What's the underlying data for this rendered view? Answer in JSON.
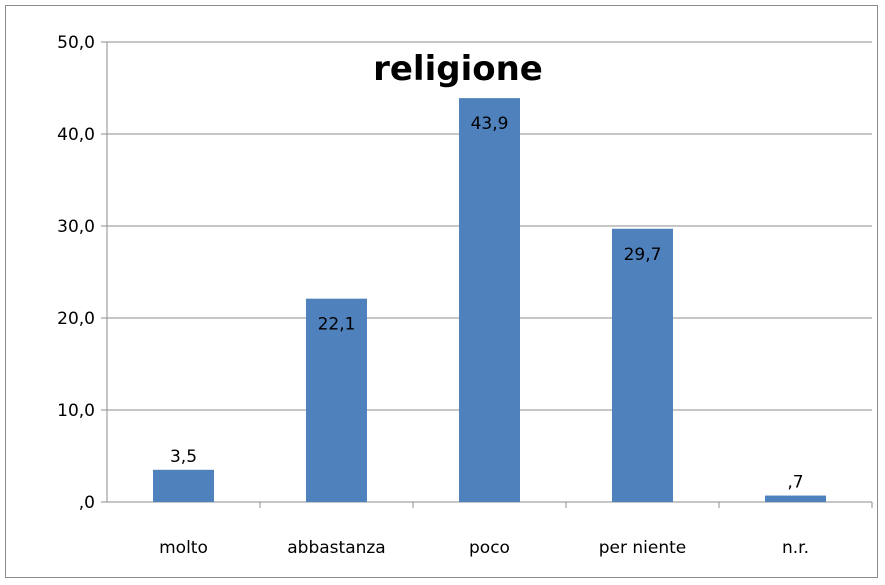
{
  "chart_data": {
    "type": "bar",
    "title": "religione",
    "categories": [
      "molto",
      "abbastanza",
      "poco",
      "per niente",
      "n.r."
    ],
    "values": [
      3.5,
      22.1,
      43.9,
      29.7,
      0.7
    ],
    "data_labels": [
      "3,5",
      "22,1",
      "43,9",
      "29,7",
      ",7"
    ],
    "ylim": [
      0,
      50
    ],
    "yticks": [
      0,
      10,
      20,
      30,
      40,
      50
    ],
    "ytick_labels": [
      ",0",
      "10,0",
      "20,0",
      "30,0",
      "40,0",
      "50,0"
    ],
    "xlabel": "",
    "ylabel": "",
    "grid": true,
    "legend": "none",
    "colors": {
      "bar": "#4f81bd",
      "grid": "#8c8c8c",
      "axis": "#8c8c8c"
    }
  }
}
